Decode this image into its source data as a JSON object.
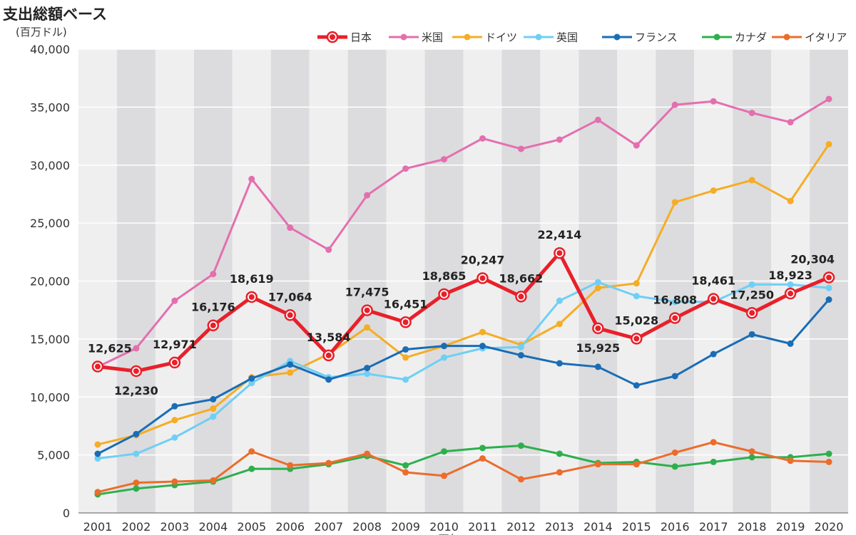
{
  "title": "支出総額ベース",
  "unit": "(百万ドル)",
  "x_footer": "(暦年)",
  "chart_data": {
    "type": "line",
    "title": "支出総額ベース",
    "ylabel": "(百万ドル)",
    "xlabel": "(暦年)",
    "ylim": [
      0,
      40000
    ],
    "yticks": [
      0,
      5000,
      10000,
      15000,
      20000,
      25000,
      30000,
      35000,
      40000
    ],
    "ytick_labels": [
      "0",
      "5,000",
      "10,000",
      "15,000",
      "20,000",
      "25,000",
      "30,000",
      "35,000",
      "40,000"
    ],
    "categories": [
      "2001",
      "2002",
      "2003",
      "2004",
      "2005",
      "2006",
      "2007",
      "2008",
      "2009",
      "2010",
      "2011",
      "2012",
      "2013",
      "2014",
      "2015",
      "2016",
      "2017",
      "2018",
      "2019",
      "2020"
    ],
    "legend_position": "top-right",
    "series": [
      {
        "name": "日本",
        "color": "#e8202a",
        "highlight": true,
        "values": [
          12625,
          12230,
          12971,
          16176,
          18619,
          17064,
          13584,
          17475,
          16451,
          18865,
          20247,
          18662,
          22414,
          15925,
          15028,
          16808,
          18461,
          17250,
          18923,
          20304
        ],
        "labels": [
          "12,625",
          "12,230",
          "12,971",
          "16,176",
          "18,619",
          "17,064",
          "13,584",
          "17,475",
          "16,451",
          "18,865",
          "20,247",
          "18,662",
          "22,414",
          "15,925",
          "15,028",
          "16,808",
          "18,461",
          "17,250",
          "18,923",
          "20,304"
        ]
      },
      {
        "name": "米国",
        "color": "#e46fae",
        "values": [
          12600,
          14200,
          18300,
          20600,
          28800,
          24600,
          22700,
          27400,
          29700,
          30500,
          32300,
          31400,
          32200,
          33900,
          31700,
          35200,
          35500,
          34500,
          33700,
          35700
        ]
      },
      {
        "name": "ドイツ",
        "color": "#f5ad25",
        "values": [
          5900,
          6700,
          8000,
          9000,
          11700,
          12100,
          13700,
          16000,
          13400,
          14400,
          15600,
          14500,
          16300,
          19400,
          19800,
          26800,
          27800,
          28700,
          26900,
          31800
        ]
      },
      {
        "name": "英国",
        "color": "#6fcff4",
        "values": [
          4700,
          5100,
          6500,
          8300,
          11200,
          13100,
          11700,
          12000,
          11500,
          13400,
          14200,
          14300,
          18300,
          19900,
          18700,
          18200,
          18200,
          19700,
          19700,
          19400
        ]
      },
      {
        "name": "フランス",
        "color": "#1a6db5",
        "values": [
          5100,
          6800,
          9200,
          9800,
          11600,
          12800,
          11500,
          12500,
          14100,
          14400,
          14400,
          13600,
          12900,
          12600,
          11000,
          11800,
          13700,
          15400,
          14600,
          18400
        ]
      },
      {
        "name": "カナダ",
        "color": "#2eaf4c",
        "values": [
          1600,
          2100,
          2400,
          2700,
          3800,
          3800,
          4200,
          4900,
          4100,
          5300,
          5600,
          5800,
          5100,
          4300,
          4400,
          4000,
          4400,
          4800,
          4800,
          5100
        ]
      },
      {
        "name": "イタリア",
        "color": "#ec6c2a",
        "values": [
          1800,
          2600,
          2700,
          2800,
          5300,
          4100,
          4300,
          5100,
          3500,
          3200,
          4700,
          2900,
          3500,
          4200,
          4200,
          5200,
          6100,
          5300,
          4500,
          4400
        ]
      }
    ]
  }
}
